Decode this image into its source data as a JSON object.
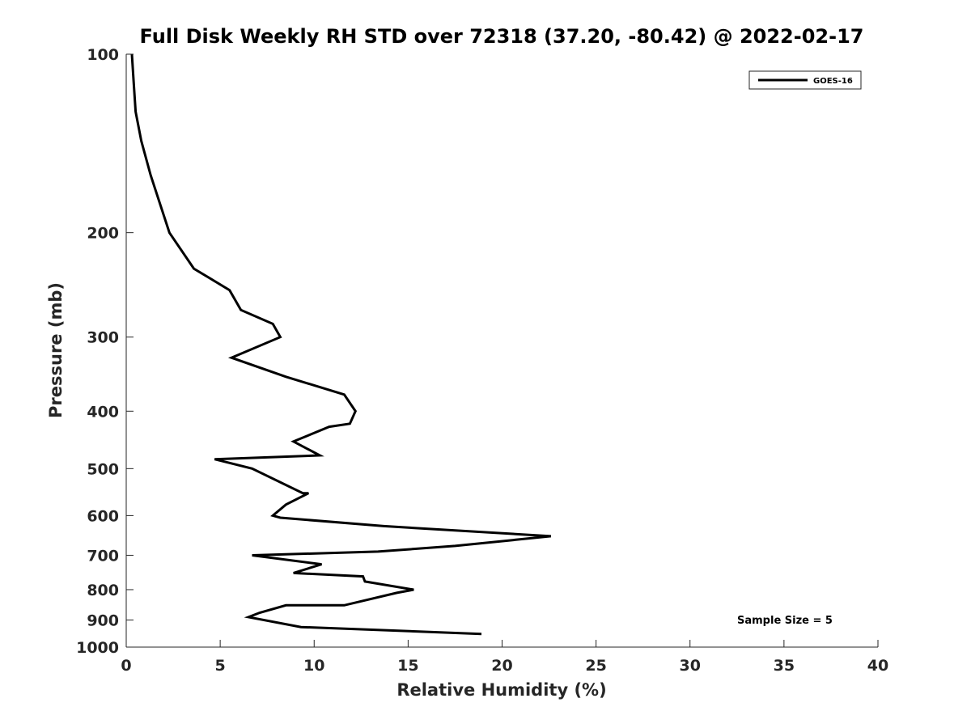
{
  "chart_data": {
    "type": "line",
    "title": "Full Disk Weekly RH STD over 72318 (37.20, -80.42) @ 2022-02-17",
    "xlabel": "Relative Humidity (%)",
    "ylabel": "Pressure (mb)",
    "xlim": [
      0,
      40
    ],
    "ylim": [
      100,
      1000
    ],
    "y_scale": "log",
    "y_reversed": true,
    "x_ticks": [
      0,
      5,
      10,
      15,
      20,
      25,
      30,
      35,
      40
    ],
    "x_tick_labels": [
      "0",
      "5",
      "10",
      "15",
      "20",
      "25",
      "30",
      "35",
      "40"
    ],
    "y_ticks": [
      100,
      200,
      300,
      400,
      500,
      600,
      700,
      800,
      900,
      1000
    ],
    "y_tick_labels": [
      "100",
      "200",
      "300",
      "400",
      "500",
      "600",
      "700",
      "800",
      "900",
      "1000"
    ],
    "grid": false,
    "legend_position": "top-right",
    "annotation": "Sample Size = 5",
    "series": [
      {
        "name": "GOES-16",
        "color": "#000000",
        "x": [
          0.3,
          0.4,
          0.5,
          0.8,
          1.3,
          2.3,
          3.6,
          5.5,
          6.1,
          7.8,
          8.2,
          5.6,
          8.5,
          11.6,
          12.2,
          11.9,
          10.8,
          8.9,
          10.3,
          4.7,
          6.7,
          9.4,
          9.7,
          8.5,
          7.8,
          8.2,
          13.7,
          22.6,
          17.5,
          13.4,
          6.7,
          10.4,
          8.9,
          12.6,
          12.7,
          15.3,
          14.4,
          11.6,
          8.5,
          7.1,
          6.5,
          9.3,
          18.9
        ],
        "y": [
          100,
          112,
          125,
          140,
          160,
          200,
          230,
          250,
          270,
          285,
          300,
          325,
          350,
          375,
          400,
          420,
          425,
          450,
          475,
          482,
          500,
          550,
          550,
          575,
          600,
          605,
          625,
          650,
          675,
          690,
          700,
          725,
          750,
          760,
          775,
          800,
          810,
          850,
          850,
          875,
          890,
          925,
          950
        ]
      }
    ]
  }
}
